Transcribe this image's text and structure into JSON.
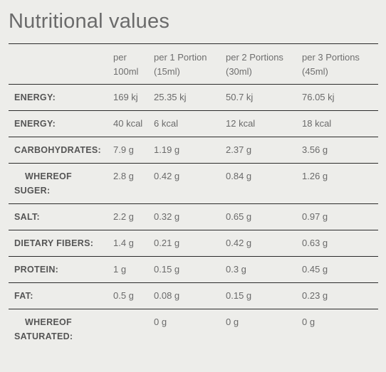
{
  "title": "Nutritional values",
  "columns": [
    "",
    "per 100ml",
    "per 1 Portion (15ml)",
    "per 2 Portions (30ml)",
    "per 3 Portions (45ml)"
  ],
  "rows": [
    {
      "label": "ENERGY:",
      "values": [
        "169 kj",
        "25.35 kj",
        "50.7 kj",
        "76.05 kj"
      ]
    },
    {
      "label": "ENERGY:",
      "values": [
        "40 kcal",
        "6 kcal",
        "12 kcal",
        "18 kcal"
      ]
    },
    {
      "label": "CARBOHYDRATES:",
      "values": [
        "7.9 g",
        "1.19 g",
        "2.37 g",
        "3.56 g"
      ]
    },
    {
      "label_line1": "WHEREOF",
      "label_line2": "SUGER:",
      "values": [
        "2.8 g",
        "0.42 g",
        "0.84 g",
        "1.26 g"
      ]
    },
    {
      "label": "SALT:",
      "values": [
        "2.2 g",
        "0.32 g",
        "0.65 g",
        "0.97 g"
      ]
    },
    {
      "label": "DIETARY FIBERS:",
      "values": [
        "1.4 g",
        "0.21 g",
        "0.42 g",
        "0.63 g"
      ]
    },
    {
      "label": "PROTEIN:",
      "values": [
        "1 g",
        "0.15 g",
        "0.3 g",
        "0.45 g"
      ]
    },
    {
      "label": "FAT:",
      "values": [
        "0.5 g",
        "0.08 g",
        "0.15 g",
        "0.23 g"
      ]
    },
    {
      "label_line1": "WHEREOF",
      "label_line2": "SATURATED:",
      "values": [
        "",
        "0 g",
        "0 g",
        "0 g"
      ]
    }
  ]
}
